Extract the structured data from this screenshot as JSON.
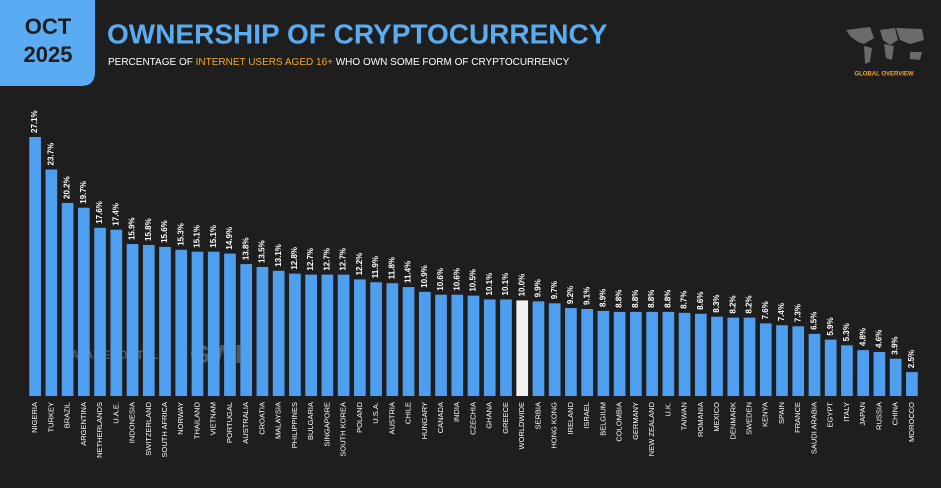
{
  "header": {
    "month": "OCT",
    "year": "2025",
    "title": "OWNERSHIP OF CRYPTOCURRENCY",
    "subtitle_start": "PERCENTAGE OF ",
    "subtitle_highlight": "INTERNET USERS AGED 16+",
    "subtitle_end": " WHO OWN SOME FORM OF CRYPTOCURRENCY",
    "badge": "GLOBAL OVERVIEW",
    "watermark_1": "DATAREPORTAL",
    "watermark_2": "GWI."
  },
  "chart_data": {
    "type": "bar",
    "color": "#4f9ff0",
    "highlight_index": 30,
    "highlight_color": "#f2f2f2",
    "categories": [
      "NIGERIA",
      "TURKEY",
      "BRAZIL",
      "ARGENTINA",
      "NETHERLANDS",
      "U.A.E.",
      "INDONESIA",
      "SWITZERLAND",
      "SOUTH AFRICA",
      "NORWAY",
      "THAILAND",
      "VIETNAM",
      "PORTUGAL",
      "AUSTRALIA",
      "CROATIA",
      "MALAYSIA",
      "PHILIPPINES",
      "BULGARIA",
      "SINGAPORE",
      "SOUTH KOREA",
      "POLAND",
      "U.S.A.",
      "AUSTRIA",
      "CHILE",
      "HUNGARY",
      "CANADA",
      "INDIA",
      "CZECHIA",
      "GHANA",
      "GREECE",
      "WORLDWIDE",
      "SERBIA",
      "HONG KONG",
      "IRELAND",
      "ISRAEL",
      "BELGIUM",
      "COLOMBIA",
      "GERMANY",
      "NEW ZEALAND",
      "U.K.",
      "TAIWAN",
      "ROMANIA",
      "MEXICO",
      "DENMARK",
      "SWEDEN",
      "KENYA",
      "SPAIN",
      "FRANCE",
      "SAUDI ARABIA",
      "EGYPT",
      "ITALY",
      "JAPAN",
      "RUSSIA",
      "CHINA",
      "MOROCCO"
    ],
    "values": [
      27.1,
      23.7,
      20.2,
      19.7,
      17.6,
      17.4,
      15.9,
      15.8,
      15.6,
      15.3,
      15.1,
      15.1,
      14.9,
      13.8,
      13.5,
      13.1,
      12.8,
      12.7,
      12.7,
      12.7,
      12.2,
      11.9,
      11.8,
      11.4,
      10.9,
      10.6,
      10.6,
      10.5,
      10.1,
      10.1,
      10.0,
      9.9,
      9.7,
      9.2,
      9.1,
      8.9,
      8.8,
      8.8,
      8.8,
      8.8,
      8.7,
      8.6,
      8.3,
      8.2,
      8.2,
      7.6,
      7.4,
      7.3,
      6.5,
      5.9,
      5.3,
      4.8,
      4.6,
      3.9,
      2.5
    ],
    "value_labels": [
      "27.1%",
      "23.7%",
      "20.2%",
      "19.7%",
      "17.6%",
      "17.4%",
      "15.9%",
      "15.8%",
      "15.6%",
      "15.3%",
      "15.1%",
      "15.1%",
      "14.9%",
      "13.8%",
      "13.5%",
      "13.1%",
      "12.8%",
      "12.7%",
      "12.7%",
      "12.7%",
      "12.2%",
      "11.9%",
      "11.8%",
      "11.4%",
      "10.9%",
      "10.6%",
      "10.6%",
      "10.5%",
      "10.1%",
      "10.1%",
      "10.0%",
      "9.9%",
      "9.7%",
      "9.2%",
      "9.1%",
      "8.9%",
      "8.8%",
      "8.8%",
      "8.8%",
      "8.8%",
      "8.7%",
      "8.6%",
      "8.3%",
      "8.2%",
      "8.2%",
      "7.6%",
      "7.4%",
      "7.3%",
      "6.5%",
      "5.9%",
      "5.3%",
      "4.8%",
      "4.6%",
      "3.9%",
      "2.5%"
    ]
  }
}
